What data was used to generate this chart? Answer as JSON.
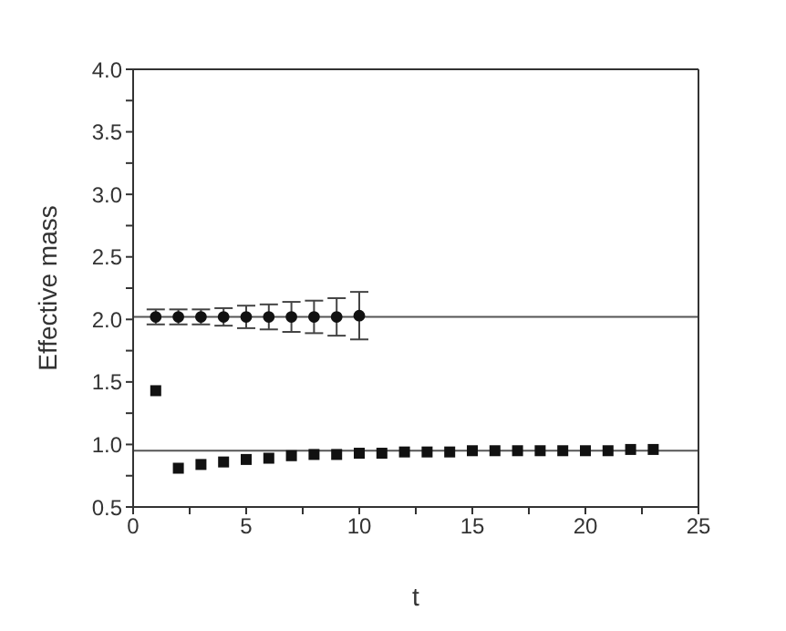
{
  "chart_data": {
    "type": "scatter",
    "xlabel": "t",
    "ylabel": "Effective mass",
    "xlim": [
      0,
      25
    ],
    "xticks": [
      0,
      {
        "value": 2.5,
        "label": null
      },
      5,
      {
        "value": 7.5,
        "label": null
      },
      10,
      {
        "value": 12.5,
        "label": null
      },
      15,
      {
        "value": 17.5,
        "label": null
      },
      20,
      {
        "value": 22.5,
        "label": null
      },
      25
    ],
    "ylim": [
      0.5,
      4.0
    ],
    "yticks": [
      {
        "value": 0.5,
        "label": "0.5"
      },
      {
        "value": 0.75,
        "label": null
      },
      {
        "value": 1.0,
        "label": "1.0"
      },
      {
        "value": 1.25,
        "label": null
      },
      {
        "value": 1.5,
        "label": "1.5"
      },
      {
        "value": 1.75,
        "label": null
      },
      {
        "value": 2.0,
        "label": "2.0"
      },
      {
        "value": 2.25,
        "label": null
      },
      {
        "value": 2.5,
        "label": "2.5"
      },
      {
        "value": 2.75,
        "label": null
      },
      {
        "value": 3.0,
        "label": "3.0"
      },
      {
        "value": 3.25,
        "label": null
      },
      {
        "value": 3.5,
        "label": "3.5"
      },
      {
        "value": 3.75,
        "label": null
      },
      {
        "value": 4.0,
        "label": "4.0"
      }
    ],
    "series": [
      {
        "color": "#111111",
        "marker": "circle",
        "x": [
          1,
          2,
          3,
          4,
          5,
          6,
          7,
          8,
          9,
          10
        ],
        "values": [
          2.02,
          2.02,
          2.02,
          2.02,
          2.02,
          2.02,
          2.02,
          2.02,
          2.02,
          2.03
        ],
        "errors": [
          0.06,
          0.06,
          0.06,
          0.07,
          0.09,
          0.1,
          0.12,
          0.13,
          0.15,
          0.19
        ]
      },
      {
        "color": "#111111",
        "marker": "square",
        "x": [
          1,
          2,
          3,
          4,
          5,
          6,
          7,
          8,
          9,
          10,
          11,
          12,
          13,
          14,
          15,
          16,
          17,
          18,
          19,
          20,
          21,
          22,
          23
        ],
        "values": [
          1.43,
          0.81,
          0.84,
          0.86,
          0.88,
          0.89,
          0.91,
          0.92,
          0.92,
          0.93,
          0.93,
          0.94,
          0.94,
          0.94,
          0.95,
          0.95,
          0.95,
          0.95,
          0.95,
          0.95,
          0.95,
          0.96,
          0.96
        ]
      }
    ],
    "ref_lines": [
      {
        "axis": "y",
        "value": 2.02,
        "color": "#555555"
      },
      {
        "axis": "y",
        "value": 0.95,
        "color": "#555555"
      }
    ]
  }
}
